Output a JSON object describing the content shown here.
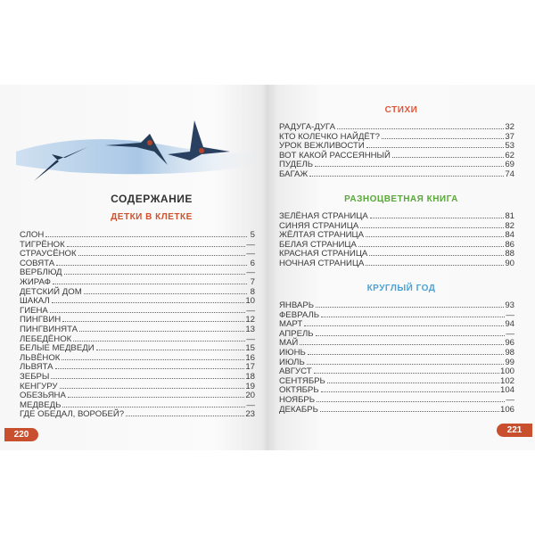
{
  "left": {
    "title": "СОДЕРЖАНИЕ",
    "section": {
      "title": "ДЕТКИ В КЛЕТКЕ",
      "color": "#d0522d",
      "items": [
        {
          "t": "СЛОН",
          "p": "5"
        },
        {
          "t": "ТИГРЁНОК",
          "p": "—"
        },
        {
          "t": "СТРАУСЁНОК",
          "p": "—"
        },
        {
          "t": "СОВЯТА",
          "p": "6"
        },
        {
          "t": "ВЕРБЛЮД",
          "p": "—"
        },
        {
          "t": "ЖИРАФ",
          "p": "7"
        },
        {
          "t": "ДЕТСКИЙ ДОМ",
          "p": "8"
        },
        {
          "t": "ШАКАЛ",
          "p": "10"
        },
        {
          "t": "ГИЕНА",
          "p": "—"
        },
        {
          "t": "ПИНГВИН",
          "p": "12"
        },
        {
          "t": "ПИНГВИНЯТА",
          "p": "13"
        },
        {
          "t": "ЛЕБЕДЁНОК",
          "p": "—"
        },
        {
          "t": "БЕЛЫЕ МЕДВЕДИ",
          "p": "15"
        },
        {
          "t": "ЛЬВЁНОК",
          "p": "16"
        },
        {
          "t": "ЛЬВЯТА",
          "p": "17"
        },
        {
          "t": "ЗЕБРЫ",
          "p": "18"
        },
        {
          "t": "КЕНГУРУ",
          "p": "19"
        },
        {
          "t": "ОБЕЗЬЯНА",
          "p": "20"
        },
        {
          "t": "МЕДВЕДЬ",
          "p": "—"
        },
        {
          "t": "ГДЕ ОБЕДАЛ, ВОРОБЕЙ?",
          "p": "23"
        }
      ]
    },
    "page_number": "220"
  },
  "right": {
    "sections": [
      {
        "title": "СТИХИ",
        "color": "#e0573a",
        "items": [
          {
            "t": "РАДУГА-ДУГА",
            "p": "32"
          },
          {
            "t": "КТО КОЛЕЧКО НАЙДЁТ?",
            "p": "37"
          },
          {
            "t": "УРОК ВЕЖЛИВОСТИ",
            "p": "53"
          },
          {
            "t": "ВОТ КАКОЙ РАССЕЯННЫЙ",
            "p": "62"
          },
          {
            "t": "ПУДЕЛЬ",
            "p": "69"
          },
          {
            "t": "БАГАЖ",
            "p": "74"
          }
        ]
      },
      {
        "title": "РАЗНОЦВЕТНАЯ КНИГА",
        "color": "#5aa83a",
        "items": [
          {
            "t": "ЗЕЛЁНАЯ СТРАНИЦА",
            "p": "81"
          },
          {
            "t": "СИНЯЯ СТРАНИЦА",
            "p": "82"
          },
          {
            "t": "ЖЁЛТАЯ СТРАНИЦА",
            "p": "84"
          },
          {
            "t": "БЕЛАЯ СТРАНИЦА",
            "p": "86"
          },
          {
            "t": "КРАСНАЯ СТРАНИЦА",
            "p": "88"
          },
          {
            "t": "НОЧНАЯ СТРАНИЦА",
            "p": "90"
          }
        ]
      },
      {
        "title": "КРУГЛЫЙ ГОД",
        "color": "#4aa3d8",
        "items": [
          {
            "t": "ЯНВАРЬ",
            "p": "93"
          },
          {
            "t": "ФЕВРАЛЬ",
            "p": "—"
          },
          {
            "t": "МАРТ",
            "p": "94"
          },
          {
            "t": "АПРЕЛЬ",
            "p": "—"
          },
          {
            "t": "МАЙ",
            "p": "96"
          },
          {
            "t": "ИЮНЬ",
            "p": "98"
          },
          {
            "t": "ИЮЛЬ",
            "p": "99"
          },
          {
            "t": "АВГУСТ",
            "p": "100"
          },
          {
            "t": "СЕНТЯБРЬ",
            "p": "102"
          },
          {
            "t": "ОКТЯБРЬ",
            "p": "104"
          },
          {
            "t": "НОЯБРЬ",
            "p": "—"
          },
          {
            "t": "ДЕКАБРЬ",
            "p": "106"
          }
        ]
      }
    ],
    "page_number": "221"
  }
}
